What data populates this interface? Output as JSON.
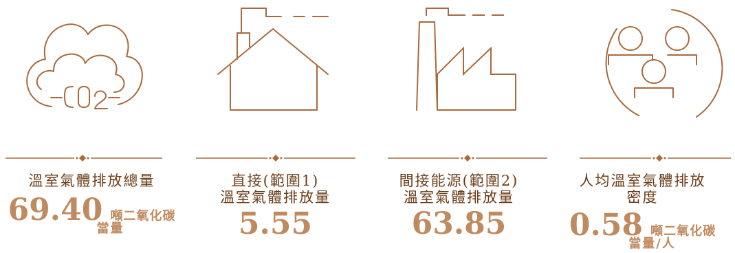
{
  "colors": {
    "line": "#a86a3e",
    "label": "#6b3c17",
    "value": "#c08a5f"
  },
  "items": [
    {
      "icon": "co2-cloud-icon",
      "label_lines": [
        "溫室氣體排放總量"
      ],
      "value": "69.40",
      "unit_line1": "噸二氧化碳",
      "unit_line2": "當量"
    },
    {
      "icon": "house-icon",
      "label_lines": [
        "直接(範圍1)",
        "溫室氣體排放量"
      ],
      "value": "5.55"
    },
    {
      "icon": "factory-icon",
      "label_lines": [
        "間接能源(範圍2)",
        "溫室氣體排放量"
      ],
      "value": "63.85"
    },
    {
      "icon": "people-group-icon",
      "label_lines": [
        "人均溫室氣體排放",
        "密度"
      ],
      "value": "0.58",
      "unit_line1": "噸二氧化碳",
      "unit_line2": "當量/人"
    }
  ]
}
